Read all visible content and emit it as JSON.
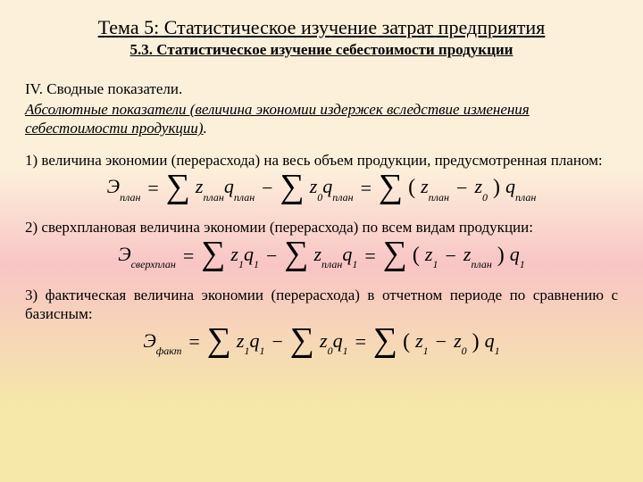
{
  "title": "Тема 5: Статистическое изучение затрат  предприятия",
  "subtitle": "5.3. Статистическое изучение себестоимости продукции",
  "section_head": "IV. Сводные показатели.",
  "section_sub_a": "Абсолютные показатели (величина экономии издержек вследствие изменения себестоимости продукции)",
  "section_sub_b": ".",
  "item1": "1) величина экономии (перерасхода) на весь объем продукции, предусмотренная планом:",
  "item2": "2) сверхплановая величина экономии (перерасхода) по всем видам продукции:",
  "item3": "3) фактическая величина экономии (перерасхода) в отчетном периоде по сравнению с базисным:",
  "f1": {
    "lhs_var": "Э",
    "lhs_sub": "план",
    "t1v": "z",
    "t1s": "план",
    "t1v2": "q",
    "t1s2": "план",
    "t2v": "z",
    "t2s": "0",
    "t2v2": "q",
    "t2s2": "план",
    "t3av": "z",
    "t3as": "план",
    "t3bv": "z",
    "t3bs": "0",
    "t3cv": "q",
    "t3cs": "план"
  },
  "f2": {
    "lhs_var": "Э",
    "lhs_sub": "сверхплан",
    "t1v": "z",
    "t1s": "1",
    "t1v2": "q",
    "t1s2": "1",
    "t2v": "z",
    "t2s": "план",
    "t2v2": "q",
    "t2s2": "1",
    "t3av": "z",
    "t3as": "1",
    "t3bv": "z",
    "t3bs": "план",
    "t3cv": "q",
    "t3cs": "1"
  },
  "f3": {
    "lhs_var": "Э",
    "lhs_sub": "факт",
    "t1v": "z",
    "t1s": "1",
    "t1v2": "q",
    "t1s2": "1",
    "t2v": "z",
    "t2s": "0",
    "t2v2": "q",
    "t2s2": "1",
    "t3av": "z",
    "t3as": "1",
    "t3bv": "z",
    "t3bs": "0",
    "t3cv": "q",
    "t3cs": "1"
  }
}
